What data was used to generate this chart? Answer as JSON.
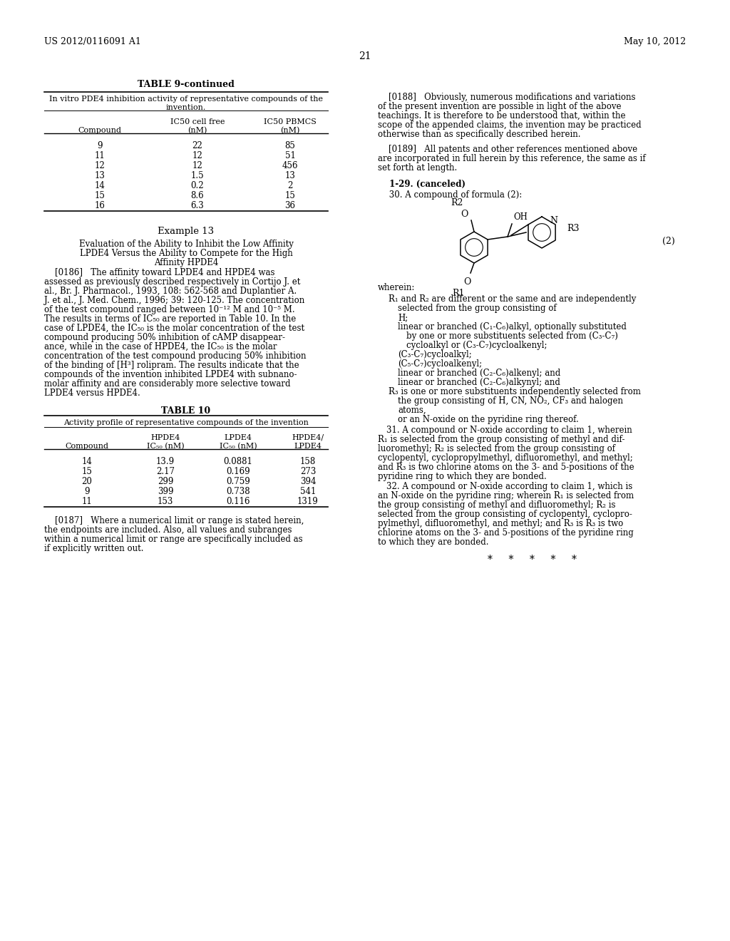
{
  "bg_color": "#ffffff",
  "header_left": "US 2012/0116091 A1",
  "header_right": "May 10, 2012",
  "page_number": "21",
  "table9_title": "TABLE 9-continued",
  "table9_data": [
    [
      "9",
      "22",
      "85"
    ],
    [
      "11",
      "12",
      "51"
    ],
    [
      "12",
      "12",
      "456"
    ],
    [
      "13",
      "1.5",
      "13"
    ],
    [
      "14",
      "0.2",
      "2"
    ],
    [
      "15",
      "8.6",
      "15"
    ],
    [
      "16",
      "6.3",
      "36"
    ]
  ],
  "example13_title": "Example 13",
  "table10_title": "TABLE 10",
  "table10_data": [
    [
      "14",
      "13.9",
      "0.0881",
      "158"
    ],
    [
      "15",
      "2.17",
      "0.169",
      "273"
    ],
    [
      "20",
      "299",
      "0.759",
      "394"
    ],
    [
      "9",
      "399",
      "0.738",
      "541"
    ],
    [
      "11",
      "153",
      "0.116",
      "1319"
    ]
  ],
  "asterisks": "*   *   *   *   *"
}
